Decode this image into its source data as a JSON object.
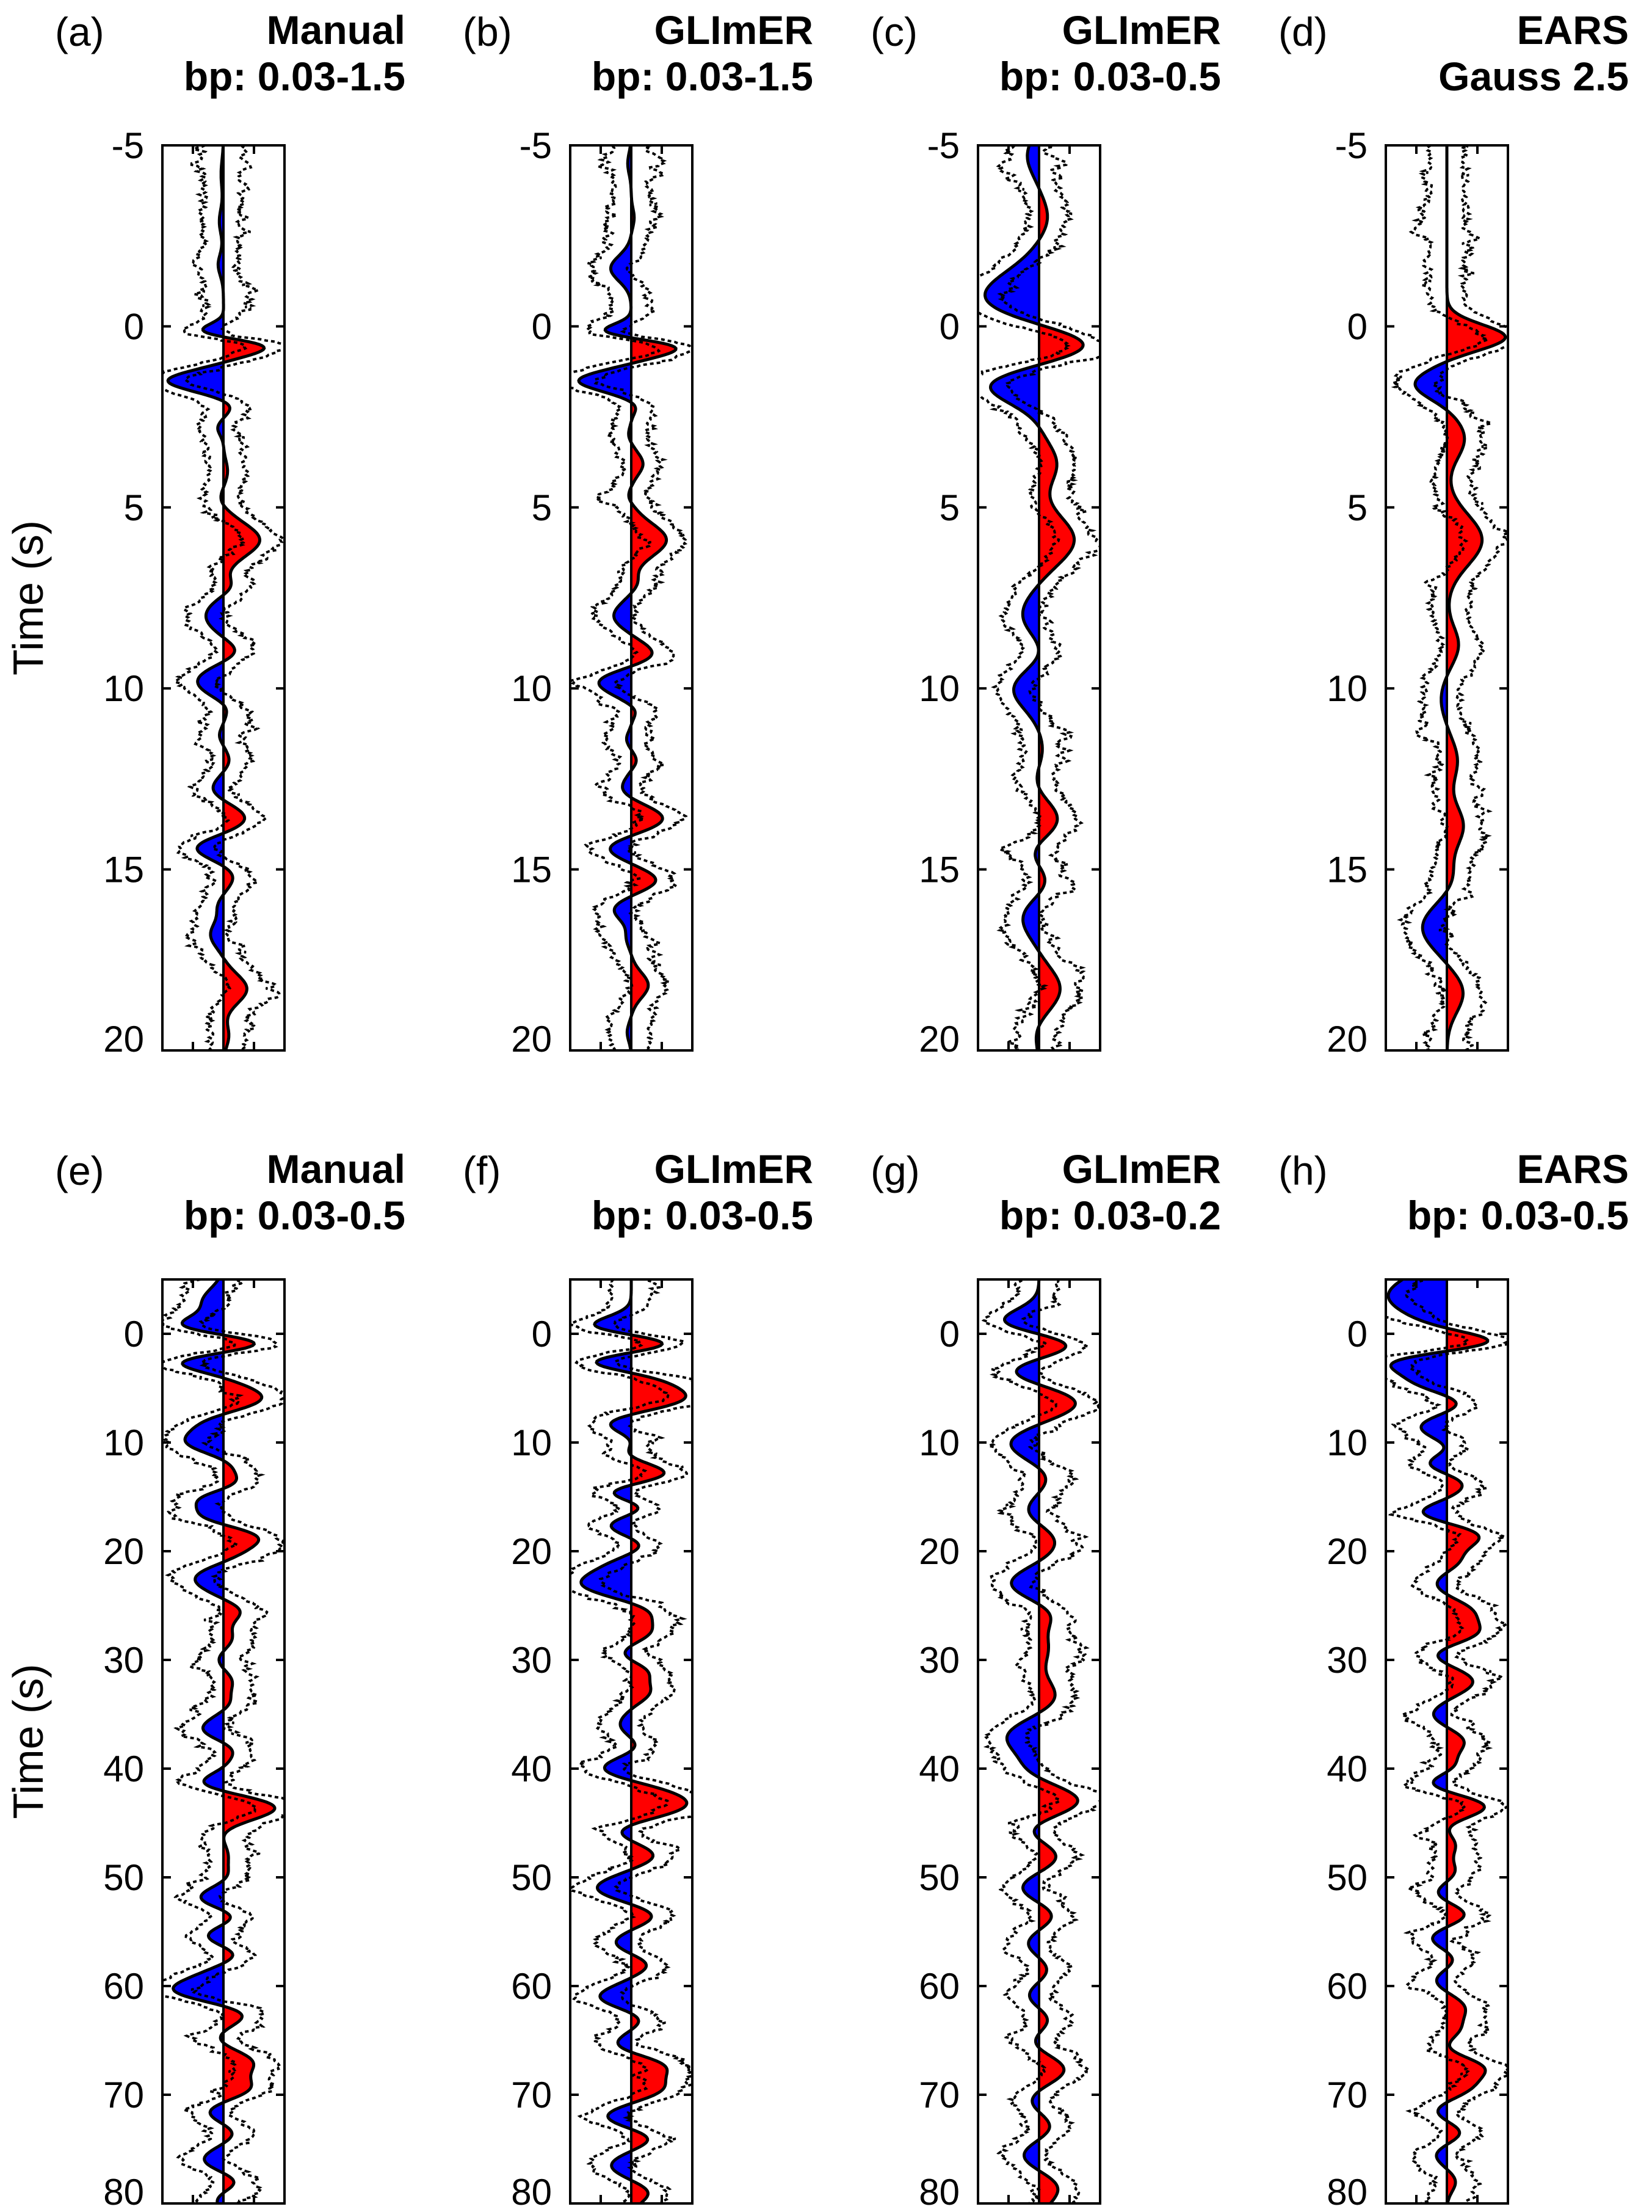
{
  "colors": {
    "positive": "#ff0000",
    "negative": "#0000ff",
    "trace": "#000000",
    "envelope": "#000000"
  },
  "chart_data": [
    {
      "type": "area",
      "panel": "(a)",
      "title": [
        "Manual",
        "bp: 0.03-1.5"
      ],
      "ylabel": "Time (s)",
      "ylim": [
        -5,
        20
      ],
      "yticks": [
        -5,
        0,
        5,
        10,
        15,
        20
      ],
      "y_inverted": true,
      "xlim": [
        -1,
        1
      ],
      "grid": false,
      "envelope": "dotted",
      "pulses": [
        [
          -4.2,
          -0.04,
          0.4
        ],
        [
          -2.9,
          -0.07,
          0.35
        ],
        [
          -1.7,
          -0.09,
          0.3
        ],
        [
          0.2,
          -0.95,
          0.22
        ],
        [
          0.45,
          1.0,
          0.3
        ],
        [
          1.5,
          -0.95,
          0.28
        ],
        [
          2.2,
          0.14,
          0.22
        ],
        [
          2.8,
          -0.1,
          0.2
        ],
        [
          4.0,
          0.07,
          0.3
        ],
        [
          4.8,
          -0.07,
          0.25
        ],
        [
          5.9,
          0.62,
          0.45
        ],
        [
          7.2,
          0.15,
          0.25
        ],
        [
          8.0,
          -0.3,
          0.4
        ],
        [
          9.0,
          0.26,
          0.3
        ],
        [
          9.8,
          -0.45,
          0.4
        ],
        [
          10.5,
          0.12,
          0.25
        ],
        [
          11.3,
          -0.07,
          0.2
        ],
        [
          12.0,
          0.1,
          0.25
        ],
        [
          12.8,
          -0.2,
          0.3
        ],
        [
          13.6,
          0.38,
          0.35
        ],
        [
          14.4,
          -0.48,
          0.3
        ],
        [
          15.2,
          0.17,
          0.3
        ],
        [
          16.0,
          -0.09,
          0.25
        ],
        [
          16.8,
          -0.22,
          0.35
        ],
        [
          18.3,
          0.4,
          0.4
        ],
        [
          19.6,
          0.09,
          0.3
        ]
      ]
    },
    {
      "type": "area",
      "panel": "(b)",
      "title": [
        "GLImER",
        "bp: 0.03-1.5"
      ],
      "ylim": [
        -5,
        20
      ],
      "yticks": [
        -5,
        0,
        5,
        10,
        15,
        20
      ],
      "y_inverted": true,
      "xlim": [
        -1,
        1
      ],
      "grid": false,
      "envelope": "dotted",
      "pulses": [
        [
          -4.5,
          -0.06,
          0.3
        ],
        [
          -3.0,
          0.05,
          0.25
        ],
        [
          -1.6,
          -0.35,
          0.35
        ],
        [
          0.2,
          -0.95,
          0.22
        ],
        [
          0.5,
          1.0,
          0.3
        ],
        [
          1.5,
          -0.9,
          0.28
        ],
        [
          2.2,
          0.1,
          0.2
        ],
        [
          3.0,
          -0.05,
          0.2
        ],
        [
          3.8,
          0.2,
          0.3
        ],
        [
          4.7,
          -0.06,
          0.2
        ],
        [
          5.9,
          0.6,
          0.45
        ],
        [
          7.1,
          0.1,
          0.25
        ],
        [
          8.0,
          -0.3,
          0.35
        ],
        [
          9.1,
          0.42,
          0.35
        ],
        [
          9.8,
          -0.6,
          0.35
        ],
        [
          10.6,
          0.1,
          0.2
        ],
        [
          11.4,
          -0.08,
          0.2
        ],
        [
          12.0,
          0.09,
          0.2
        ],
        [
          12.8,
          -0.18,
          0.3
        ],
        [
          13.6,
          0.55,
          0.35
        ],
        [
          14.4,
          -0.4,
          0.3
        ],
        [
          15.3,
          0.43,
          0.3
        ],
        [
          16.1,
          -0.3,
          0.3
        ],
        [
          16.9,
          -0.08,
          0.25
        ],
        [
          18.2,
          0.29,
          0.35
        ],
        [
          19.5,
          -0.07,
          0.25
        ]
      ]
    },
    {
      "type": "area",
      "panel": "(c)",
      "title": [
        "GLImER",
        "bp: 0.03-0.5"
      ],
      "ylim": [
        -5,
        20
      ],
      "yticks": [
        -5,
        0,
        5,
        10,
        15,
        20
      ],
      "y_inverted": true,
      "xlim": [
        -1,
        1
      ],
      "grid": false,
      "envelope": "dotted",
      "pulses": [
        [
          -4.7,
          -0.2,
          0.5
        ],
        [
          -3.0,
          0.15,
          0.5
        ],
        [
          -0.8,
          -0.95,
          0.7
        ],
        [
          0.5,
          1.0,
          0.5
        ],
        [
          1.6,
          -0.9,
          0.5
        ],
        [
          3.8,
          0.3,
          0.55
        ],
        [
          5.9,
          0.6,
          0.65
        ],
        [
          8.0,
          -0.3,
          0.6
        ],
        [
          9.0,
          0.15,
          0.5
        ],
        [
          10.0,
          -0.45,
          0.55
        ],
        [
          11.8,
          0.08,
          0.5
        ],
        [
          12.6,
          -0.1,
          0.5
        ],
        [
          13.7,
          0.38,
          0.55
        ],
        [
          14.5,
          -0.25,
          0.5
        ],
        [
          15.3,
          0.22,
          0.5
        ],
        [
          16.3,
          -0.3,
          0.55
        ],
        [
          18.3,
          0.36,
          0.55
        ],
        [
          19.5,
          -0.07,
          0.4
        ]
      ]
    },
    {
      "type": "area",
      "panel": "(d)",
      "title": [
        "EARS",
        "Gauss 2.5"
      ],
      "ylim": [
        -5,
        20
      ],
      "yticks": [
        -5,
        0,
        5,
        10,
        15,
        20
      ],
      "y_inverted": true,
      "xlim": [
        -1,
        1
      ],
      "grid": false,
      "envelope": "dotted",
      "pulses": [
        [
          0.3,
          1.0,
          0.35
        ],
        [
          1.6,
          -0.55,
          0.4
        ],
        [
          3.1,
          0.3,
          0.55
        ],
        [
          5.9,
          0.6,
          0.7
        ],
        [
          8.8,
          0.2,
          0.5
        ],
        [
          10.3,
          -0.1,
          0.5
        ],
        [
          12.0,
          0.18,
          0.55
        ],
        [
          13.8,
          0.28,
          0.55
        ],
        [
          15.3,
          0.12,
          0.5
        ],
        [
          16.6,
          -0.42,
          0.6
        ],
        [
          18.4,
          0.28,
          0.55
        ]
      ]
    },
    {
      "type": "area",
      "panel": "(e)",
      "title": [
        "Manual",
        "bp: 0.03-0.5"
      ],
      "ylabel": "Time (s)",
      "ylim": [
        -5,
        80
      ],
      "yticks": [
        0,
        10,
        20,
        30,
        40,
        50,
        60,
        70,
        80
      ],
      "y_inverted": true,
      "xlim": [
        -1,
        1
      ],
      "grid": false,
      "envelope": "dotted",
      "pulses": [
        [
          -3,
          -0.35,
          1.2
        ],
        [
          -0.5,
          -0.95,
          0.9
        ],
        [
          0.8,
          1.0,
          1.0
        ],
        [
          2.5,
          -0.9,
          0.9
        ],
        [
          6,
          0.7,
          1.2
        ],
        [
          8,
          -0.4,
          1.0
        ],
        [
          10,
          -0.6,
          1.0
        ],
        [
          12,
          0.15,
          0.9
        ],
        [
          14,
          0.3,
          0.9
        ],
        [
          15,
          -0.45,
          0.8
        ],
        [
          17,
          -0.55,
          1.0
        ],
        [
          18.5,
          0.7,
          1.1
        ],
        [
          20.5,
          0.2,
          0.9
        ],
        [
          22.5,
          -0.5,
          1.2
        ],
        [
          25.5,
          0.3,
          0.9
        ],
        [
          28,
          0.15,
          0.9
        ],
        [
          30,
          -0.1,
          0.8
        ],
        [
          32,
          0.15,
          0.9
        ],
        [
          34,
          0.12,
          0.8
        ],
        [
          36.5,
          -0.4,
          1.1
        ],
        [
          38,
          0.25,
          0.9
        ],
        [
          40,
          0.1,
          0.9
        ],
        [
          41.5,
          -0.55,
          1.0
        ],
        [
          43.5,
          0.95,
          1.2
        ],
        [
          45.5,
          -0.1,
          0.9
        ],
        [
          48,
          0.08,
          0.9
        ],
        [
          50,
          0.1,
          0.8
        ],
        [
          52,
          -0.45,
          1.0
        ],
        [
          53.5,
          0.3,
          0.9
        ],
        [
          55.5,
          -0.35,
          1.0
        ],
        [
          57,
          0.3,
          0.9
        ],
        [
          59,
          -0.25,
          1.0
        ],
        [
          60.5,
          -0.8,
          1.0
        ],
        [
          62.5,
          0.4,
          1.0
        ],
        [
          65,
          -0.15,
          0.9
        ],
        [
          67,
          0.5,
          1.1
        ],
        [
          69.5,
          0.45,
          1.0
        ],
        [
          71.5,
          -0.3,
          1.0
        ],
        [
          73.5,
          0.2,
          0.9
        ],
        [
          76,
          -0.35,
          1.0
        ],
        [
          78,
          0.25,
          0.9
        ],
        [
          79.5,
          -0.15,
          0.8
        ]
      ]
    },
    {
      "type": "area",
      "panel": "(f)",
      "title": [
        "GLImER",
        "bp: 0.03-0.5"
      ],
      "ylim": [
        -5,
        80
      ],
      "yticks": [
        0,
        10,
        20,
        30,
        40,
        50,
        60,
        70,
        80
      ],
      "y_inverted": true,
      "xlim": [
        -1,
        1
      ],
      "grid": false,
      "envelope": "dotted",
      "pulses": [
        [
          -0.5,
          -0.95,
          0.9
        ],
        [
          0.8,
          1.0,
          1.0
        ],
        [
          2.5,
          -0.9,
          0.9
        ],
        [
          4,
          0.3,
          0.9
        ],
        [
          6,
          0.95,
          1.2
        ],
        [
          8,
          -0.55,
          1.0
        ],
        [
          10,
          0.15,
          0.9
        ],
        [
          11,
          -0.2,
          0.9
        ],
        [
          13,
          0.7,
          1.0
        ],
        [
          14.5,
          -0.6,
          0.9
        ],
        [
          16,
          0.4,
          0.9
        ],
        [
          17.5,
          -0.45,
          1.0
        ],
        [
          19.5,
          0.25,
          0.9
        ],
        [
          21,
          -0.2,
          0.9
        ],
        [
          23,
          -0.85,
          1.2
        ],
        [
          25.5,
          0.35,
          1.0
        ],
        [
          27.5,
          0.3,
          0.9
        ],
        [
          29.5,
          -0.2,
          0.9
        ],
        [
          31,
          0.3,
          0.9
        ],
        [
          33,
          0.3,
          0.9
        ],
        [
          36,
          -0.2,
          1.0
        ],
        [
          38,
          0.15,
          0.9
        ],
        [
          40,
          -0.5,
          1.0
        ],
        [
          42,
          0.25,
          0.9
        ],
        [
          43.5,
          0.9,
          1.2
        ],
        [
          45.5,
          -0.35,
          1.0
        ],
        [
          48,
          0.4,
          1.0
        ],
        [
          51,
          -0.6,
          1.1
        ],
        [
          53.5,
          0.4,
          1.0
        ],
        [
          56,
          -0.3,
          1.0
        ],
        [
          58,
          0.3,
          0.9
        ],
        [
          61,
          -0.55,
          1.0
        ],
        [
          63,
          0.2,
          0.9
        ],
        [
          66,
          -0.6,
          1.1
        ],
        [
          67,
          0.85,
          1.1
        ],
        [
          69.5,
          0.5,
          1.0
        ],
        [
          72,
          -0.45,
          1.0
        ],
        [
          74,
          0.35,
          0.9
        ],
        [
          76.5,
          -0.35,
          1.0
        ],
        [
          79,
          0.3,
          0.9
        ]
      ]
    },
    {
      "type": "area",
      "panel": "(g)",
      "title": [
        "GLImER",
        "bp: 0.03-0.2"
      ],
      "ylim": [
        -5,
        80
      ],
      "yticks": [
        0,
        10,
        20,
        30,
        40,
        50,
        60,
        70,
        80
      ],
      "y_inverted": true,
      "xlim": [
        -1,
        1
      ],
      "grid": false,
      "envelope": "dotted",
      "pulses": [
        [
          -0.8,
          -0.95,
          1.2
        ],
        [
          0.9,
          1.0,
          1.4
        ],
        [
          3.5,
          -0.85,
          1.6
        ],
        [
          6,
          0.85,
          1.7
        ],
        [
          10,
          -0.55,
          1.6
        ],
        [
          13,
          0.2,
          1.4
        ],
        [
          16.5,
          -0.25,
          1.4
        ],
        [
          18.5,
          0.25,
          1.3
        ],
        [
          20.5,
          0.2,
          1.3
        ],
        [
          23,
          -0.55,
          1.6
        ],
        [
          25.5,
          0.3,
          1.3
        ],
        [
          29,
          0.15,
          1.3
        ],
        [
          33.5,
          0.3,
          1.5
        ],
        [
          37,
          -0.55,
          1.5
        ],
        [
          40.5,
          -0.3,
          1.4
        ],
        [
          43,
          0.8,
          1.6
        ],
        [
          45.5,
          -0.4,
          1.4
        ],
        [
          48,
          0.4,
          1.5
        ],
        [
          51,
          -0.4,
          1.4
        ],
        [
          53.5,
          0.35,
          1.4
        ],
        [
          56,
          -0.3,
          1.4
        ],
        [
          58.5,
          0.25,
          1.4
        ],
        [
          61,
          -0.3,
          1.4
        ],
        [
          63,
          0.3,
          1.3
        ],
        [
          65.5,
          -0.3,
          1.4
        ],
        [
          67.5,
          0.55,
          1.5
        ],
        [
          70.5,
          -0.25,
          1.4
        ],
        [
          73,
          0.3,
          1.4
        ],
        [
          75.5,
          -0.35,
          1.4
        ],
        [
          78.5,
          0.35,
          1.4
        ]
      ]
    },
    {
      "type": "area",
      "panel": "(h)",
      "title": [
        "EARS",
        "bp: 0.03-0.5"
      ],
      "ylim": [
        -5,
        80
      ],
      "yticks": [
        0,
        10,
        20,
        30,
        40,
        50,
        60,
        70,
        80
      ],
      "y_inverted": true,
      "xlim": [
        -1,
        1
      ],
      "grid": false,
      "envelope": "dotted",
      "pulses": [
        [
          -3.5,
          -1.0,
          2.0
        ],
        [
          0.8,
          1.0,
          0.9
        ],
        [
          2.5,
          -0.95,
          1.0
        ],
        [
          4.5,
          -0.5,
          1.0
        ],
        [
          6.5,
          0.35,
          1.0
        ],
        [
          8.5,
          -0.5,
          1.2
        ],
        [
          10.5,
          0.2,
          0.9
        ],
        [
          12,
          -0.4,
          1.0
        ],
        [
          13.5,
          0.3,
          0.9
        ],
        [
          15,
          0.15,
          0.9
        ],
        [
          16.5,
          -0.55,
          1.0
        ],
        [
          18.5,
          0.6,
          1.1
        ],
        [
          21,
          0.2,
          0.9
        ],
        [
          23,
          -0.2,
          1.0
        ],
        [
          25.5,
          0.4,
          1.0
        ],
        [
          27.5,
          0.5,
          1.0
        ],
        [
          29.5,
          -0.25,
          0.9
        ],
        [
          32,
          0.45,
          1.1
        ],
        [
          35,
          -0.25,
          1.0
        ],
        [
          37.5,
          0.3,
          1.0
        ],
        [
          40,
          0.2,
          0.9
        ],
        [
          41.5,
          -0.45,
          1.0
        ],
        [
          43.5,
          0.75,
          1.2
        ],
        [
          45,
          -0.2,
          0.9
        ],
        [
          47,
          0.15,
          0.9
        ],
        [
          49.5,
          0.15,
          0.9
        ],
        [
          51.5,
          -0.2,
          0.9
        ],
        [
          53.5,
          0.35,
          1.0
        ],
        [
          55.5,
          -0.3,
          1.0
        ],
        [
          57.5,
          0.15,
          0.9
        ],
        [
          59.5,
          -0.2,
          0.9
        ],
        [
          62,
          0.3,
          1.0
        ],
        [
          64,
          0.2,
          0.9
        ],
        [
          66,
          -0.15,
          0.9
        ],
        [
          67.5,
          0.65,
          1.1
        ],
        [
          69.5,
          0.3,
          0.9
        ],
        [
          71.5,
          -0.2,
          0.9
        ],
        [
          73.5,
          0.25,
          0.9
        ],
        [
          75.5,
          -0.2,
          0.9
        ],
        [
          78,
          0.15,
          0.9
        ]
      ]
    }
  ]
}
